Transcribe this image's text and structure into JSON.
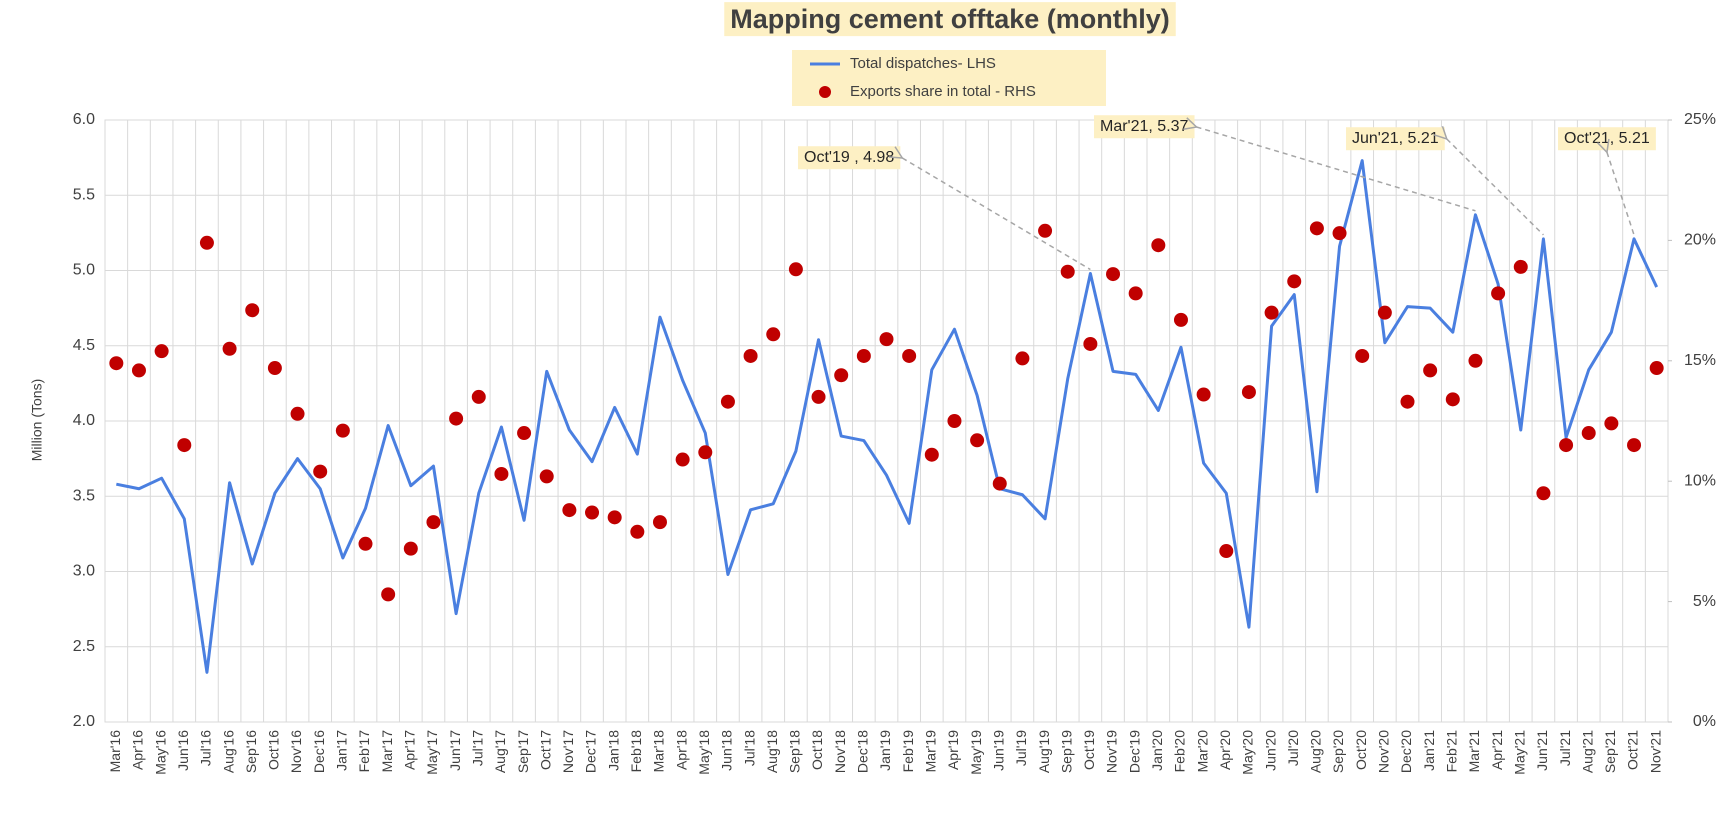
{
  "chart_data": {
    "type": "line",
    "title": "Mapping cement offtake (monthly)",
    "ylabel": "Million (Tons)",
    "categories": [
      "Mar'16",
      "Apr'16",
      "May'16",
      "Jun'16",
      "Jul'16",
      "Aug'16",
      "Sep'16",
      "Oct'16",
      "Nov'16",
      "Dec'16",
      "Jan'17",
      "Feb'17",
      "Mar'17",
      "Apr'17",
      "May'17",
      "Jun'17",
      "Jul'17",
      "Aug'17",
      "Sep'17",
      "Oct'17",
      "Nov'17",
      "Dec'17",
      "Jan'18",
      "Feb'18",
      "Mar'18",
      "Apr'18",
      "May'18",
      "Jun'18",
      "Jul'18",
      "Aug'18",
      "Sep'18",
      "Oct'18",
      "Nov'18",
      "Dec'18",
      "Jan'19",
      "Feb'19",
      "Mar'19",
      "Apr'19",
      "May'19",
      "Jun'19",
      "Jul'19",
      "Aug'19",
      "Sep'19",
      "Oct'19",
      "Nov'19",
      "Dec'19",
      "Jan'20",
      "Feb'20",
      "Mar'20",
      "Apr'20",
      "May'20",
      "Jun'20",
      "Jul'20",
      "Aug'20",
      "Sep'20",
      "Oct'20",
      "Nov'20",
      "Dec'20",
      "Jan'21",
      "Feb'21",
      "Mar'21",
      "Apr'21",
      "May'21",
      "Jun'21",
      "Jul'21",
      "Aug'21",
      "Sep'21",
      "Oct'21",
      "Nov'21"
    ],
    "series": [
      {
        "name": "Total dispatches- LHS",
        "type": "line",
        "color": "#4a7fe0",
        "values": [
          3.58,
          3.55,
          3.62,
          3.35,
          2.33,
          3.59,
          3.05,
          3.52,
          3.75,
          3.55,
          3.09,
          3.42,
          3.97,
          3.57,
          3.7,
          2.72,
          3.52,
          3.96,
          3.34,
          4.33,
          3.94,
          3.73,
          4.09,
          3.78,
          4.69,
          4.27,
          3.92,
          2.98,
          3.41,
          3.45,
          3.8,
          4.54,
          3.9,
          3.87,
          3.64,
          3.32,
          4.34,
          4.61,
          4.17,
          3.55,
          3.51,
          3.35,
          4.28,
          4.98,
          4.33,
          4.31,
          4.07,
          4.49,
          3.72,
          3.52,
          2.63,
          4.63,
          4.84,
          3.53,
          5.16,
          5.73,
          4.52,
          4.76,
          4.75,
          4.59,
          5.37,
          4.91,
          3.94,
          5.21,
          3.89,
          4.34,
          4.59,
          5.21,
          4.89
        ]
      },
      {
        "name": "Exports share in total - RHS",
        "type": "scatter",
        "axis": "y2",
        "color": "#c00000",
        "values": [
          14.9,
          14.6,
          15.4,
          11.5,
          19.9,
          15.5,
          17.1,
          14.7,
          12.8,
          10.4,
          12.1,
          7.4,
          5.3,
          7.2,
          8.3,
          12.6,
          13.5,
          10.3,
          12.0,
          10.2,
          8.8,
          8.7,
          8.5,
          7.9,
          8.3,
          10.9,
          11.2,
          13.3,
          15.2,
          16.1,
          18.8,
          13.5,
          14.4,
          15.2,
          15.9,
          15.2,
          11.1,
          12.5,
          11.7,
          9.9,
          15.1,
          20.4,
          18.7,
          15.7,
          18.6,
          17.8,
          19.8,
          16.7,
          13.6,
          7.1,
          13.7,
          17.0,
          18.3,
          20.5,
          20.3,
          15.2,
          17.0,
          13.3,
          14.6,
          13.4,
          15.0,
          17.8,
          18.9,
          9.5,
          11.5,
          12.0,
          12.4,
          11.5,
          14.7
        ]
      }
    ],
    "ylim": [
      2,
      6
    ],
    "yticks": [
      {
        "value": 2,
        "label": "2.0"
      },
      2.5,
      {
        "value": 3,
        "label": "3.0"
      },
      3.5,
      {
        "value": 4,
        "label": "4.0"
      },
      4.5,
      {
        "value": 5,
        "label": "5.0"
      },
      5.5,
      {
        "value": 6,
        "label": "6.0"
      }
    ],
    "y2lim": [
      0,
      25
    ],
    "y2ticks": [
      {
        "value": 0,
        "label": "0%"
      },
      {
        "value": 5,
        "label": "5%"
      },
      {
        "value": 10,
        "label": "10%"
      },
      {
        "value": 15,
        "label": "15%"
      },
      {
        "value": 20,
        "label": "20%"
      },
      {
        "value": 25,
        "label": "25%"
      }
    ],
    "grid": true,
    "legend": "top",
    "annotations": [
      {
        "text": "Oct'19 , 4.98",
        "x": "Oct'19",
        "y": 4.98
      },
      {
        "text": "Mar'21, 5.37",
        "x": "Mar'21",
        "y": 5.37
      },
      {
        "text": "Jun'21,  5.21",
        "x": "Jun'21",
        "y": 5.21
      },
      {
        "text": "Oct'21, 5.21",
        "x": "Oct'21",
        "y": 5.21
      }
    ]
  }
}
